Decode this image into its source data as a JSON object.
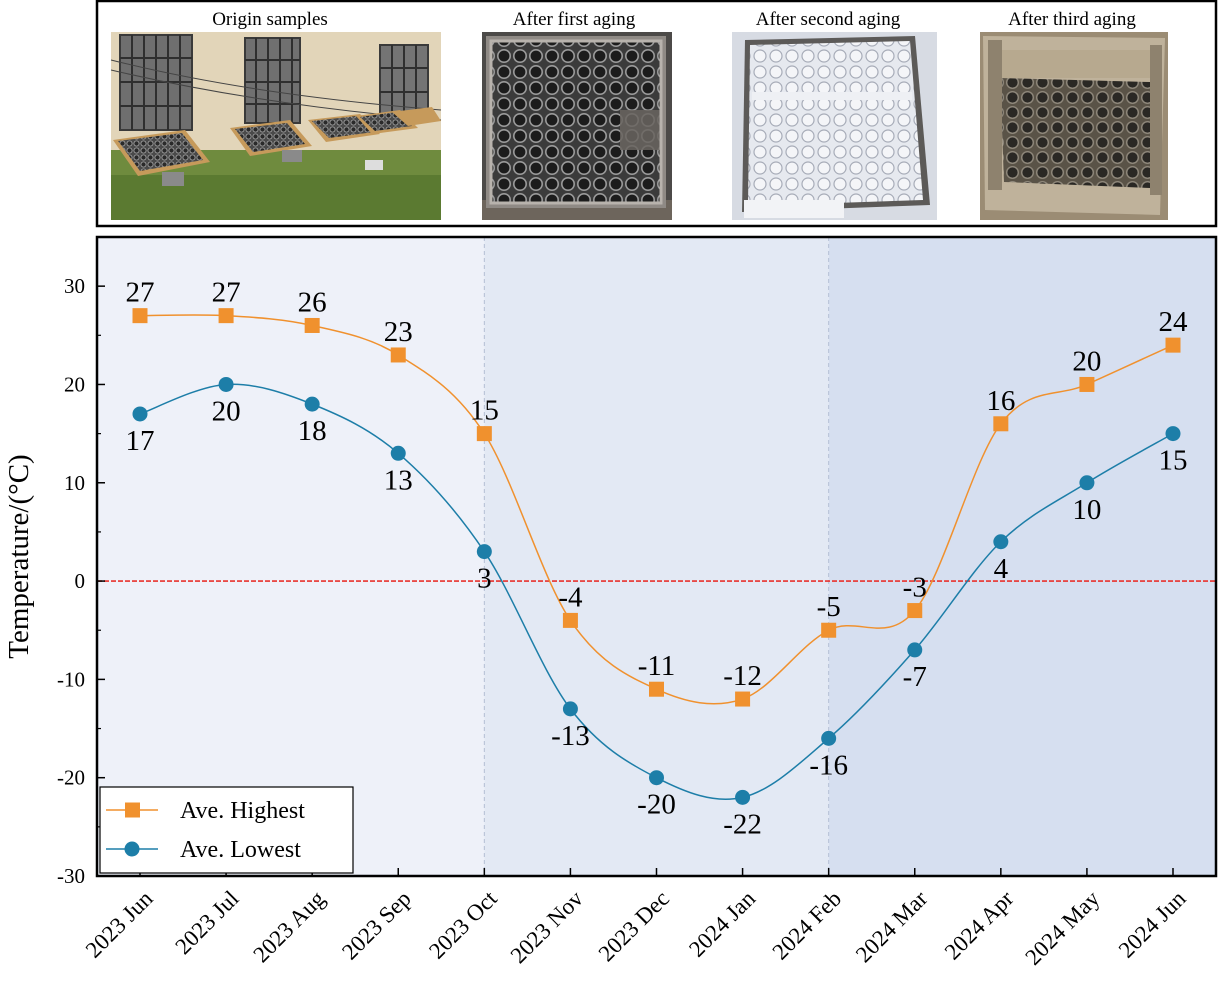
{
  "photos": [
    {
      "caption": "Origin samples",
      "kind": "origin"
    },
    {
      "caption": "After first aging",
      "kind": "first"
    },
    {
      "caption": "After second aging",
      "kind": "second"
    },
    {
      "caption": "After third aging",
      "kind": "third"
    }
  ],
  "chart_data": {
    "type": "line",
    "title": "",
    "xlabel": "",
    "ylabel": "Temperature/(°C)",
    "categories": [
      "2023 Jun",
      "2023 Jul",
      "2023 Aug",
      "2023 Sep",
      "2023 Oct",
      "2023 Nov",
      "2023 Dec",
      "2024 Jan",
      "2024 Feb",
      "2024 Mar",
      "2024 Apr",
      "2024 May",
      "2024 Jun"
    ],
    "ylim": [
      -30,
      35
    ],
    "yticks": [
      -30,
      -20,
      -10,
      0,
      10,
      20,
      30
    ],
    "reference_line": 0,
    "background_bands": [
      {
        "from": "2023 Jun",
        "to": "2023 Oct",
        "color": "#eef1f9"
      },
      {
        "from": "2023 Oct",
        "to": "2024 Feb",
        "color": "#e3e9f4"
      },
      {
        "from": "2024 Feb",
        "to": "2024 Jun",
        "color": "#d6dff0"
      }
    ],
    "series": [
      {
        "name": "Ave. Highest",
        "color": "#f0912e",
        "marker": "square",
        "values": [
          27,
          27,
          26,
          23,
          15,
          -4,
          -11,
          -12,
          -5,
          -3,
          16,
          20,
          24
        ]
      },
      {
        "name": "Ave. Lowest",
        "color": "#1d7ea8",
        "marker": "circle",
        "values": [
          17,
          20,
          18,
          13,
          3,
          -13,
          -20,
          -22,
          -16,
          -7,
          4,
          10,
          15
        ]
      }
    ],
    "legend_position": "bottom-left",
    "grid": false
  }
}
